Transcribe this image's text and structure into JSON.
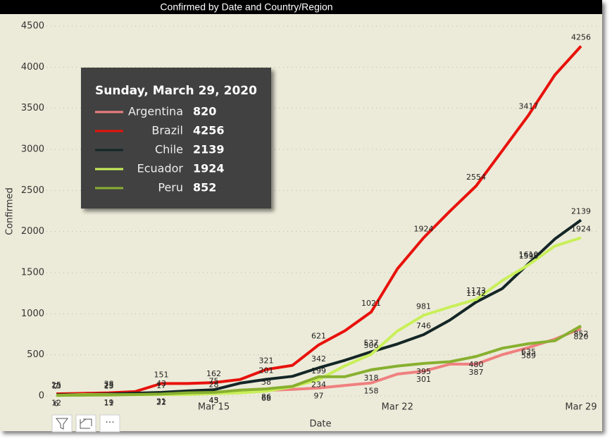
{
  "chart_data": {
    "type": "line",
    "title": "Confirmed by Date and Country/Region",
    "xlabel": "Date",
    "ylabel": "Confirmed",
    "categories": [
      null,
      null,
      null,
      null,
      null,
      null,
      "Mar 15",
      null,
      null,
      null,
      null,
      null,
      null,
      "Mar 22",
      null,
      null,
      null,
      null,
      null,
      null,
      "Mar 29"
    ],
    "ylim": [
      0,
      4500
    ],
    "yticks": [
      0,
      500,
      1000,
      1500,
      2000,
      2500,
      3000,
      3500,
      4000,
      4500
    ],
    "grid": true,
    "series": [
      {
        "name": "Argentina",
        "color": "#f08080",
        "values": [
          12,
          17,
          19,
          19,
          31,
          34,
          45,
          56,
          68,
          79,
          97,
          128,
          158,
          266,
          301,
          387,
          387,
          502,
          589,
          690,
          820
        ]
      },
      {
        "name": "Brazil",
        "color": "#e8120c",
        "values": [
          25,
          31,
          38,
          52,
          151,
          151,
          162,
          200,
          321,
          372,
          621,
          793,
          1021,
          1546,
          1924,
          2247,
          2554,
          2985,
          3417,
          3904,
          4256
        ]
      },
      {
        "name": "Chile",
        "color": "#142626",
        "values": [
          13,
          17,
          23,
          33,
          43,
          61,
          75,
          155,
          201,
          238,
          342,
          434,
          537,
          632,
          746,
          922,
          1142,
          1306,
          1610,
          1909,
          2139
        ]
      },
      {
        "name": "Ecuador",
        "color": "#c9ef5a",
        "values": [
          7,
          15,
          15,
          15,
          17,
          17,
          28,
          37,
          58,
          111,
          199,
          367,
          506,
          789,
          981,
          1082,
          1173,
          1403,
          1595,
          1823,
          1924
        ]
      },
      {
        "name": "Peru",
        "color": "#88b030",
        "values": [
          6,
          9,
          11,
          17,
          22,
          38,
          43,
          71,
          86,
          117,
          234,
          234,
          318,
          363,
          395,
          416,
          480,
          580,
          635,
          671,
          852
        ]
      }
    ],
    "tooltip": {
      "title": "Sunday, March 29, 2020"
    }
  }
}
